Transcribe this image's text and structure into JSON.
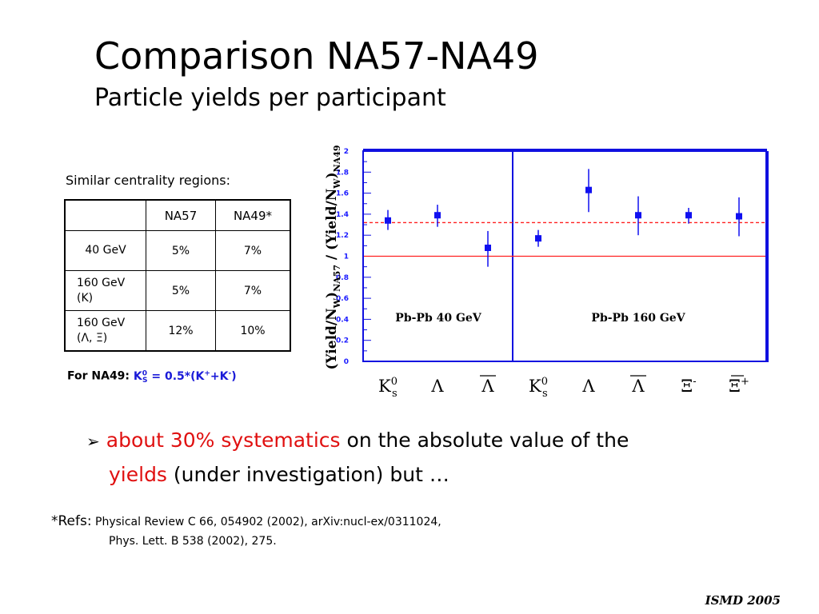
{
  "title": "Comparison NA57-NA49",
  "subtitle": "Particle yields per participant",
  "table": {
    "caption": "Similar centrality regions:",
    "headers": [
      "",
      "NA57",
      "NA49*"
    ],
    "rows": [
      {
        "label1": "40 GeV",
        "label2": "",
        "na57": "5%",
        "na49": "7%"
      },
      {
        "label1": "160 GeV",
        "label2": "(K)",
        "na57": "5%",
        "na49": "7%"
      },
      {
        "label1": "160 GeV",
        "label2": "(Λ, Ξ)",
        "na57": "12%",
        "na49": "10%"
      }
    ]
  },
  "formula": {
    "prefix": "For NA49:",
    "k": "K",
    "k_sup": "0",
    "k_sub": "S",
    "mid": " = 0.5*(K",
    "plus": "+",
    "mid2": "+K",
    "minus": "-",
    "end": ")"
  },
  "bullet": {
    "marker": "➢",
    "red1": "about 30% systematics",
    "black1": " on the absolute value of the",
    "red2": "yields",
    "black2": " (under investigation) but …"
  },
  "refs": {
    "label": "*Refs:",
    "line1": " Physical Review C 66, 054902 (2002), arXiv:nucl-ex/0311024,",
    "line2": "Phys. Lett. B 538 (2002), 275."
  },
  "footer": "ISMD 2005",
  "colors": {
    "accent_red": "#e01010",
    "accent_blue": "#1a1ad8",
    "frame_blue": "#1010e0",
    "marker_blue": "#1010f0"
  },
  "chart_data": {
    "type": "scatter",
    "ylabel": "(Yield/N_W)_NA57 / (Yield/N_W)_NA49",
    "ylim": [
      0,
      2
    ],
    "yticks": [
      "0",
      "0.2",
      "0.4",
      "0.6",
      "0.8",
      "1",
      "1.2",
      "1.4",
      "1.6",
      "1.8",
      "2"
    ],
    "categories": [
      "K0s",
      "Λ",
      "Λ̄",
      "K0s",
      "Λ",
      "Λ̄",
      "Ξ-",
      "Ξ̄+"
    ],
    "category_labels": [
      {
        "base": "K",
        "sup": "0",
        "sub": "s"
      },
      {
        "base": "Λ",
        "sup": "",
        "sub": ""
      },
      {
        "base": "Λ",
        "sup": "",
        "sub": "",
        "bar": true
      },
      {
        "base": "K",
        "sup": "0",
        "sub": "s"
      },
      {
        "base": "Λ",
        "sup": "",
        "sub": ""
      },
      {
        "base": "Λ",
        "sup": "",
        "sub": "",
        "bar": true
      },
      {
        "base": "Ξ",
        "sup": "-",
        "sub": ""
      },
      {
        "base": "Ξ",
        "sup": "+",
        "sub": "",
        "bar": true
      }
    ],
    "values": [
      1.34,
      1.39,
      1.08,
      1.17,
      1.63,
      1.39,
      1.39,
      1.38
    ],
    "errors": [
      [
        1.25,
        1.44
      ],
      [
        1.28,
        1.49
      ],
      [
        0.9,
        1.24
      ],
      [
        1.09,
        1.25
      ],
      [
        1.42,
        1.83
      ],
      [
        1.2,
        1.57
      ],
      [
        1.31,
        1.46
      ],
      [
        1.19,
        1.56
      ]
    ],
    "panels": [
      "Pb-Pb 40 GeV",
      "Pb-Pb 160 GeV"
    ],
    "reference_lines": [
      {
        "y": 1.0,
        "style": "solid",
        "color": "#ff2020"
      },
      {
        "y": 1.32,
        "style": "dashed",
        "color": "#ff2020"
      }
    ]
  }
}
